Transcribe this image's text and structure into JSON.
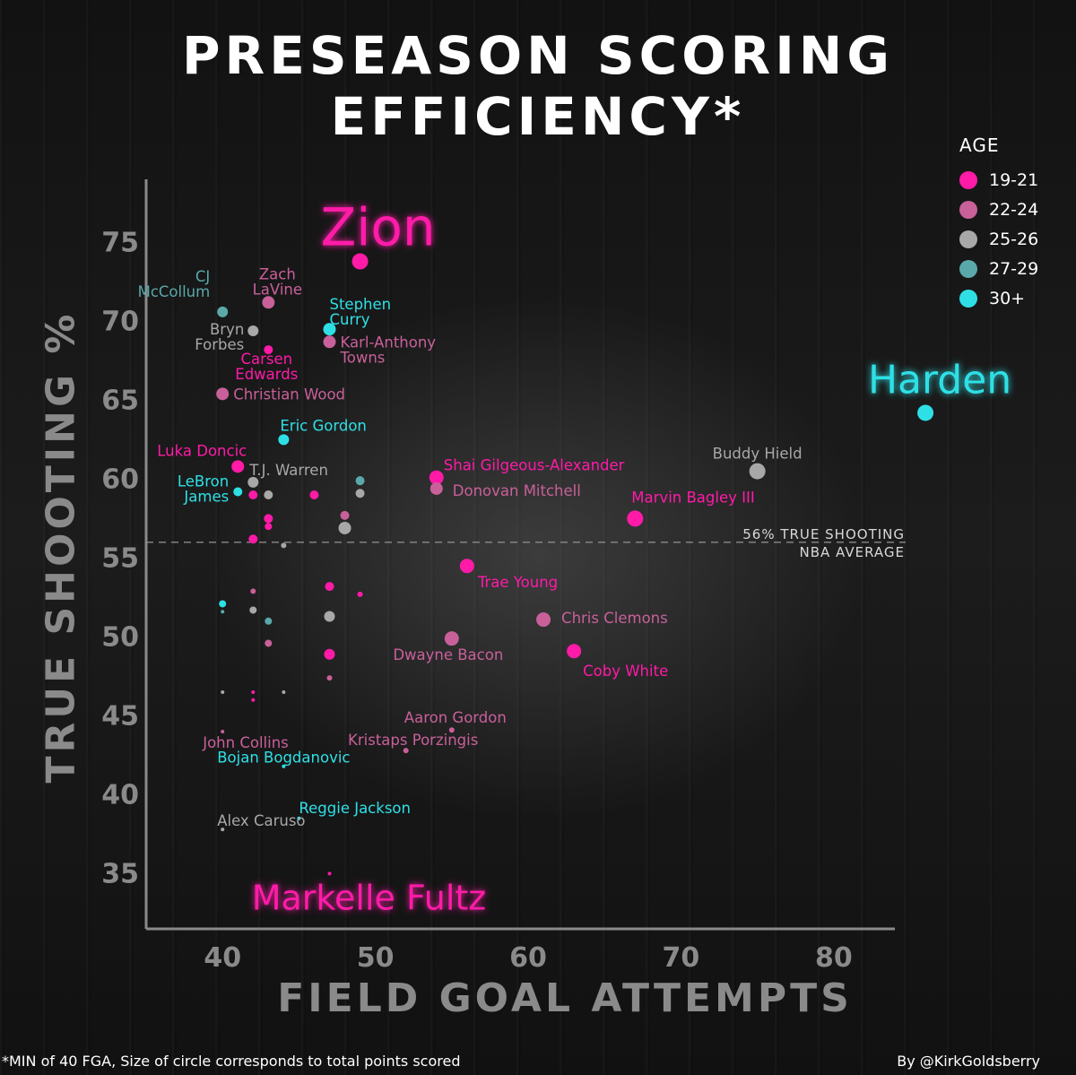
{
  "title": "PRESEASON SCORING EFFICIENCY*",
  "footnote": "*MIN of 40 FGA, Size of circle corresponds to total points scored",
  "credit": "By @KirkGoldsberry",
  "colors": {
    "19-21": "#ff1aa8",
    "22-24": "#c8609a",
    "25-26": "#a8a8a8",
    "27-29": "#5aa8aa",
    "30+": "#2ee0e6",
    "axis": "#8a8a8a",
    "average_line": "#8a8a8a"
  },
  "legend": {
    "title": "AGE",
    "items": [
      {
        "label": "19-21",
        "group": "19-21"
      },
      {
        "label": "22-24",
        "group": "22-24"
      },
      {
        "label": "25-26",
        "group": "25-26"
      },
      {
        "label": "27-29",
        "group": "27-29"
      },
      {
        "label": "30+",
        "group": "30+"
      }
    ]
  },
  "chart_data": {
    "type": "scatter",
    "title": "PRESEASON SCORING EFFICIENCY*",
    "xlabel": "FIELD GOAL ATTEMPTS",
    "ylabel": "TRUE SHOOTING %",
    "xlim": [
      35,
      84
    ],
    "ylim": [
      31.5,
      79
    ],
    "xticks": [
      40,
      50,
      60,
      70,
      80
    ],
    "yticks": [
      35,
      40,
      45,
      50,
      55,
      60,
      65,
      70,
      75
    ],
    "grid": false,
    "legend_position": "top-right",
    "reference_line": {
      "y": 56,
      "label": [
        "56% TRUE SHOOTING",
        "NBA AVERAGE"
      ]
    },
    "points": [
      {
        "x": 49,
        "y": 73.8,
        "group": "19-21",
        "size": 9,
        "label": "Zion",
        "big": true
      },
      {
        "x": 86,
        "y": 64.2,
        "group": "30+",
        "size": 9,
        "label": "Harden",
        "big": true
      },
      {
        "x": 47,
        "y": 35.0,
        "group": "19-21",
        "size": 2,
        "label": "Markelle Fultz",
        "big": true
      },
      {
        "x": 43,
        "y": 71.2,
        "group": "22-24",
        "size": 7,
        "label": "Zach\nLaVine"
      },
      {
        "x": 40,
        "y": 70.6,
        "group": "27-29",
        "size": 6,
        "label": "CJ\nMcCollum"
      },
      {
        "x": 47,
        "y": 69.5,
        "group": "30+",
        "size": 7,
        "label": "Stephen\nCurry"
      },
      {
        "x": 47,
        "y": 68.7,
        "group": "22-24",
        "size": 7,
        "label": "Karl-Anthony\nTowns"
      },
      {
        "x": 42,
        "y": 69.4,
        "group": "25-26",
        "size": 6,
        "label": "Bryn\nForbes"
      },
      {
        "x": 43,
        "y": 68.2,
        "group": "19-21",
        "size": 5,
        "label": "Carsen\nEdwards"
      },
      {
        "x": 40,
        "y": 65.4,
        "group": "22-24",
        "size": 7,
        "label": "Christian Wood"
      },
      {
        "x": 44,
        "y": 62.5,
        "group": "30+",
        "size": 6,
        "label": "Eric Gordon"
      },
      {
        "x": 41,
        "y": 60.8,
        "group": "19-21",
        "size": 7,
        "label": "Luka Doncic"
      },
      {
        "x": 42,
        "y": 59.8,
        "group": "25-26",
        "size": 6,
        "label": "T.J. Warren"
      },
      {
        "x": 41,
        "y": 59.2,
        "group": "30+",
        "size": 5,
        "label": "LeBron\nJames"
      },
      {
        "x": 54,
        "y": 60.1,
        "group": "19-21",
        "size": 8,
        "label": "Shai Gilgeous-Alexander"
      },
      {
        "x": 54,
        "y": 59.4,
        "group": "22-24",
        "size": 7,
        "label": "Donovan Mitchell"
      },
      {
        "x": 75,
        "y": 60.5,
        "group": "25-26",
        "size": 9,
        "label": "Buddy Hield"
      },
      {
        "x": 67,
        "y": 57.5,
        "group": "19-21",
        "size": 9,
        "label": "Marvin Bagley III"
      },
      {
        "x": 56,
        "y": 54.5,
        "group": "19-21",
        "size": 8,
        "label": "Trae Young"
      },
      {
        "x": 61,
        "y": 51.1,
        "group": "22-24",
        "size": 8,
        "label": "Chris Clemons"
      },
      {
        "x": 55,
        "y": 49.9,
        "group": "22-24",
        "size": 8,
        "label": "Dwayne Bacon"
      },
      {
        "x": 63,
        "y": 49.1,
        "group": "19-21",
        "size": 8,
        "label": "Coby White"
      },
      {
        "x": 55,
        "y": 44.1,
        "group": "22-24",
        "size": 3,
        "label": "Aaron Gordon"
      },
      {
        "x": 52,
        "y": 42.8,
        "group": "22-24",
        "size": 3,
        "label": "Kristaps Porzingis"
      },
      {
        "x": 40,
        "y": 44.0,
        "group": "22-24",
        "size": 2,
        "label": "John Collins"
      },
      {
        "x": 44,
        "y": 41.8,
        "group": "30+",
        "size": 2,
        "label": "Bojan Bogdanovic"
      },
      {
        "x": 45,
        "y": 38.5,
        "group": "30+",
        "size": 2,
        "label": "Reggie Jackson"
      },
      {
        "x": 40,
        "y": 37.8,
        "group": "25-26",
        "size": 2,
        "label": "Alex Caruso"
      },
      {
        "x": 42,
        "y": 59.0,
        "group": "19-21",
        "size": 5,
        "label": ""
      },
      {
        "x": 43,
        "y": 59.0,
        "group": "25-26",
        "size": 5,
        "label": ""
      },
      {
        "x": 46,
        "y": 59.0,
        "group": "19-21",
        "size": 5,
        "label": ""
      },
      {
        "x": 49,
        "y": 59.9,
        "group": "27-29",
        "size": 5,
        "label": ""
      },
      {
        "x": 49,
        "y": 59.1,
        "group": "25-26",
        "size": 5,
        "label": ""
      },
      {
        "x": 48,
        "y": 57.7,
        "group": "22-24",
        "size": 5,
        "label": ""
      },
      {
        "x": 48,
        "y": 56.9,
        "group": "25-26",
        "size": 7,
        "label": ""
      },
      {
        "x": 43,
        "y": 57.5,
        "group": "19-21",
        "size": 5,
        "label": ""
      },
      {
        "x": 43,
        "y": 57.0,
        "group": "19-21",
        "size": 4,
        "label": ""
      },
      {
        "x": 42,
        "y": 56.2,
        "group": "19-21",
        "size": 5,
        "label": ""
      },
      {
        "x": 44,
        "y": 55.8,
        "group": "25-26",
        "size": 3,
        "label": ""
      },
      {
        "x": 47,
        "y": 53.2,
        "group": "19-21",
        "size": 5,
        "label": ""
      },
      {
        "x": 49,
        "y": 52.7,
        "group": "19-21",
        "size": 3,
        "label": ""
      },
      {
        "x": 42,
        "y": 52.9,
        "group": "22-24",
        "size": 3,
        "label": ""
      },
      {
        "x": 40,
        "y": 52.1,
        "group": "30+",
        "size": 4,
        "label": ""
      },
      {
        "x": 40,
        "y": 51.6,
        "group": "27-29",
        "size": 2,
        "label": ""
      },
      {
        "x": 42,
        "y": 51.7,
        "group": "25-26",
        "size": 4,
        "label": ""
      },
      {
        "x": 43,
        "y": 51.0,
        "group": "27-29",
        "size": 4,
        "label": ""
      },
      {
        "x": 47,
        "y": 51.3,
        "group": "25-26",
        "size": 6,
        "label": ""
      },
      {
        "x": 43,
        "y": 49.6,
        "group": "22-24",
        "size": 4,
        "label": ""
      },
      {
        "x": 47,
        "y": 48.9,
        "group": "19-21",
        "size": 6,
        "label": ""
      },
      {
        "x": 47,
        "y": 47.4,
        "group": "22-24",
        "size": 3,
        "label": ""
      },
      {
        "x": 40,
        "y": 46.5,
        "group": "25-26",
        "size": 2,
        "label": ""
      },
      {
        "x": 42,
        "y": 46.5,
        "group": "19-21",
        "size": 2,
        "label": ""
      },
      {
        "x": 42,
        "y": 46.0,
        "group": "19-21",
        "size": 2,
        "label": ""
      },
      {
        "x": 44,
        "y": 46.5,
        "group": "25-26",
        "size": 2,
        "label": ""
      }
    ]
  }
}
